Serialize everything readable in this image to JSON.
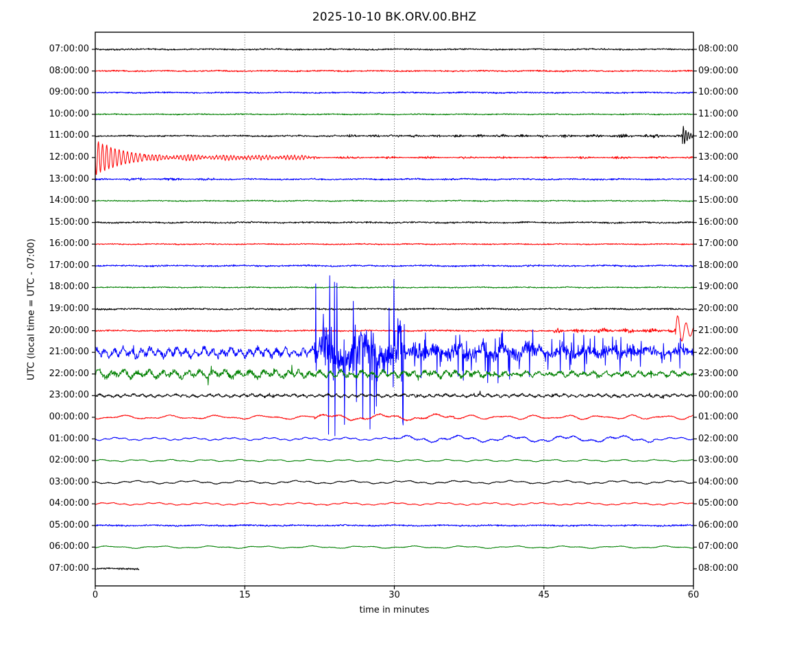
{
  "title": "2025-10-10 BK.ORV.00.BHZ",
  "axes": {
    "ylabel": "UTC (local time = UTC - 07:00)",
    "xlabel": "time in minutes",
    "xticks": [
      "0",
      "15",
      "30",
      "45",
      "60"
    ]
  },
  "colors": {
    "background": "#ffffff",
    "frame": "#000000",
    "grid": "#555555",
    "trace_cycle": [
      "#000000",
      "#ff0000",
      "#0000ff",
      "#008000"
    ]
  },
  "chart_data": {
    "type": "line",
    "subtype": "seismogram day plot (helicorder), one 60-minute line per row",
    "minutes_per_line": 60,
    "x_range_minutes": [
      0,
      60
    ],
    "grid_minutes": [
      15,
      30,
      45
    ],
    "amplitude_units": "pixels relative to each row baseline",
    "segment_format": "[start_min, end_min, style, amplitude_px, p1(tau), p2(freq_cpm)]",
    "rows": [
      {
        "left_label": "07:00:00",
        "right_label": "08:00:00",
        "color": "#000000",
        "segments": [
          [
            0,
            60,
            "quiet",
            1.3
          ]
        ]
      },
      {
        "left_label": "08:00:00",
        "right_label": "09:00:00",
        "color": "#ff0000",
        "segments": [
          [
            0,
            60,
            "quiet",
            1.2
          ]
        ]
      },
      {
        "left_label": "09:00:00",
        "right_label": "10:00:00",
        "color": "#0000ff",
        "segments": [
          [
            0,
            60,
            "quiet",
            1.3
          ]
        ]
      },
      {
        "left_label": "10:00:00",
        "right_label": "11:00:00",
        "color": "#008000",
        "segments": [
          [
            0,
            60,
            "quiet",
            1.0
          ]
        ]
      },
      {
        "left_label": "11:00:00",
        "right_label": "12:00:00",
        "color": "#000000",
        "segments": [
          [
            0,
            24,
            "quiet",
            1.3
          ],
          [
            24,
            47,
            "fuzz",
            2.1
          ],
          [
            47,
            58.9,
            "fuzz",
            2.6
          ],
          [
            58.9,
            60,
            "osc",
            17,
            0.55,
            4
          ]
        ],
        "note": "rising noise after ~24 min, sharp small event at ~59.5 min"
      },
      {
        "left_label": "12:00:00",
        "right_label": "13:00:00",
        "color": "#ff0000",
        "segments": [
          [
            0,
            5,
            "osc",
            26,
            3.0,
            2.4
          ],
          [
            5,
            22,
            "ring",
            4.5,
            0,
            2.8
          ],
          [
            22,
            60,
            "fuzz",
            1.7
          ]
        ],
        "note": "large event coda decaying from line start through ~22 min"
      },
      {
        "left_label": "13:00:00",
        "right_label": "14:00:00",
        "color": "#0000ff",
        "segments": [
          [
            0,
            12,
            "fuzz",
            2.0
          ],
          [
            12,
            60,
            "quiet",
            1.4
          ]
        ]
      },
      {
        "left_label": "14:00:00",
        "right_label": "15:00:00",
        "color": "#008000",
        "segments": [
          [
            0,
            60,
            "quiet",
            1.0
          ]
        ]
      },
      {
        "left_label": "15:00:00",
        "right_label": "16:00:00",
        "color": "#000000",
        "segments": [
          [
            0,
            60,
            "quiet",
            1.4
          ]
        ]
      },
      {
        "left_label": "16:00:00",
        "right_label": "17:00:00",
        "color": "#ff0000",
        "segments": [
          [
            0,
            60,
            "quiet",
            1.0
          ]
        ]
      },
      {
        "left_label": "17:00:00",
        "right_label": "18:00:00",
        "color": "#0000ff",
        "segments": [
          [
            0,
            60,
            "quiet",
            1.4
          ]
        ]
      },
      {
        "left_label": "18:00:00",
        "right_label": "19:00:00",
        "color": "#008000",
        "segments": [
          [
            0,
            60,
            "quiet",
            1.0
          ]
        ]
      },
      {
        "left_label": "19:00:00",
        "right_label": "20:00:00",
        "color": "#000000",
        "segments": [
          [
            0,
            60,
            "quiet",
            1.4
          ]
        ]
      },
      {
        "left_label": "20:00:00",
        "right_label": "21:00:00",
        "color": "#ff0000",
        "segments": [
          [
            0,
            46,
            "quiet",
            1.3
          ],
          [
            46,
            58.2,
            "fuzz",
            3.4
          ],
          [
            58.2,
            60,
            "osc",
            26,
            1.3,
            1.2
          ]
        ],
        "note": "noise burst after ~46 min, two large slow swings near line end"
      },
      {
        "left_label": "21:00:00",
        "right_label": "22:00:00",
        "color": "#0000ff",
        "segments": [
          [
            0,
            22,
            "noisy",
            8
          ],
          [
            22,
            31,
            "spikes",
            115
          ],
          [
            31,
            44,
            "spikes",
            40
          ],
          [
            44,
            54,
            "spikes",
            30
          ],
          [
            54,
            60,
            "spikes",
            22
          ]
        ],
        "note": "major event: very large spikes ~22-31 min crossing neighboring rows, elevated to line end"
      },
      {
        "left_label": "22:00:00",
        "right_label": "23:00:00",
        "color": "#008000",
        "segments": [
          [
            0,
            20,
            "noisy",
            7
          ],
          [
            20,
            40,
            "noisy",
            6
          ],
          [
            40,
            60,
            "noisy",
            4.5
          ]
        ],
        "note": "elevated microseismic noise, slowly decaying"
      },
      {
        "left_label": "23:00:00",
        "right_label": "00:00:00",
        "color": "#000000",
        "segments": [
          [
            0,
            60,
            "noisy",
            2.6
          ]
        ]
      },
      {
        "left_label": "00:00:00",
        "right_label": "01:00:00",
        "color": "#ff0000",
        "segments": [
          [
            0,
            22,
            "lp",
            2.6
          ],
          [
            22,
            36,
            "lp",
            4.4
          ],
          [
            36,
            60,
            "lp",
            2.8
          ]
        ]
      },
      {
        "left_label": "01:00:00",
        "right_label": "02:00:00",
        "color": "#0000ff",
        "segments": [
          [
            0,
            30,
            "lp",
            2.0
          ],
          [
            30,
            56,
            "lp",
            4.4
          ],
          [
            56,
            60,
            "lp",
            2.2
          ]
        ]
      },
      {
        "left_label": "02:00:00",
        "right_label": "03:00:00",
        "color": "#008000",
        "segments": [
          [
            0,
            60,
            "lp",
            1.5
          ]
        ]
      },
      {
        "left_label": "03:00:00",
        "right_label": "04:00:00",
        "color": "#000000",
        "segments": [
          [
            0,
            60,
            "lp",
            2.2
          ]
        ]
      },
      {
        "left_label": "04:00:00",
        "right_label": "05:00:00",
        "color": "#ff0000",
        "segments": [
          [
            0,
            60,
            "lp",
            1.7
          ]
        ]
      },
      {
        "left_label": "05:00:00",
        "right_label": "06:00:00",
        "color": "#0000ff",
        "segments": [
          [
            0,
            60,
            "quiet",
            1.4
          ]
        ]
      },
      {
        "left_label": "06:00:00",
        "right_label": "07:00:00",
        "color": "#008000",
        "segments": [
          [
            0,
            60,
            "lp",
            1.6
          ]
        ]
      },
      {
        "left_label": "07:00:00",
        "right_label": "08:00:00",
        "color": "#000000",
        "segments": [
          [
            0,
            4.4,
            "quiet",
            1.5
          ]
        ],
        "note": "partial line, data ends ~4.4 min"
      }
    ]
  }
}
